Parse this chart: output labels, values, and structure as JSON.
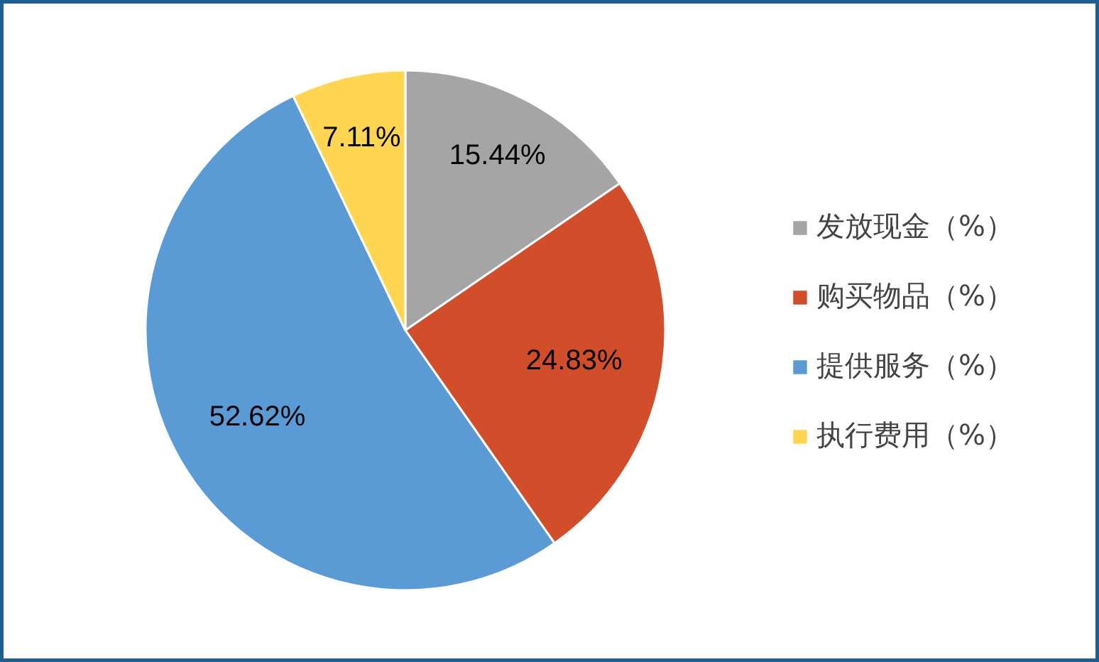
{
  "chart_data": {
    "type": "pie",
    "categories": [
      "发放现金（%）",
      "购买物品（%）",
      "提供服务（%）",
      "执行费用（%）"
    ],
    "values": [
      15.44,
      24.83,
      52.62,
      7.11
    ],
    "colors": [
      "#a5a5a5",
      "#d24e2a",
      "#5b9bd5",
      "#ffd551"
    ],
    "value_labels": [
      "15.44%",
      "24.83%",
      "52.62%",
      "7.11%"
    ],
    "legend": "right"
  }
}
